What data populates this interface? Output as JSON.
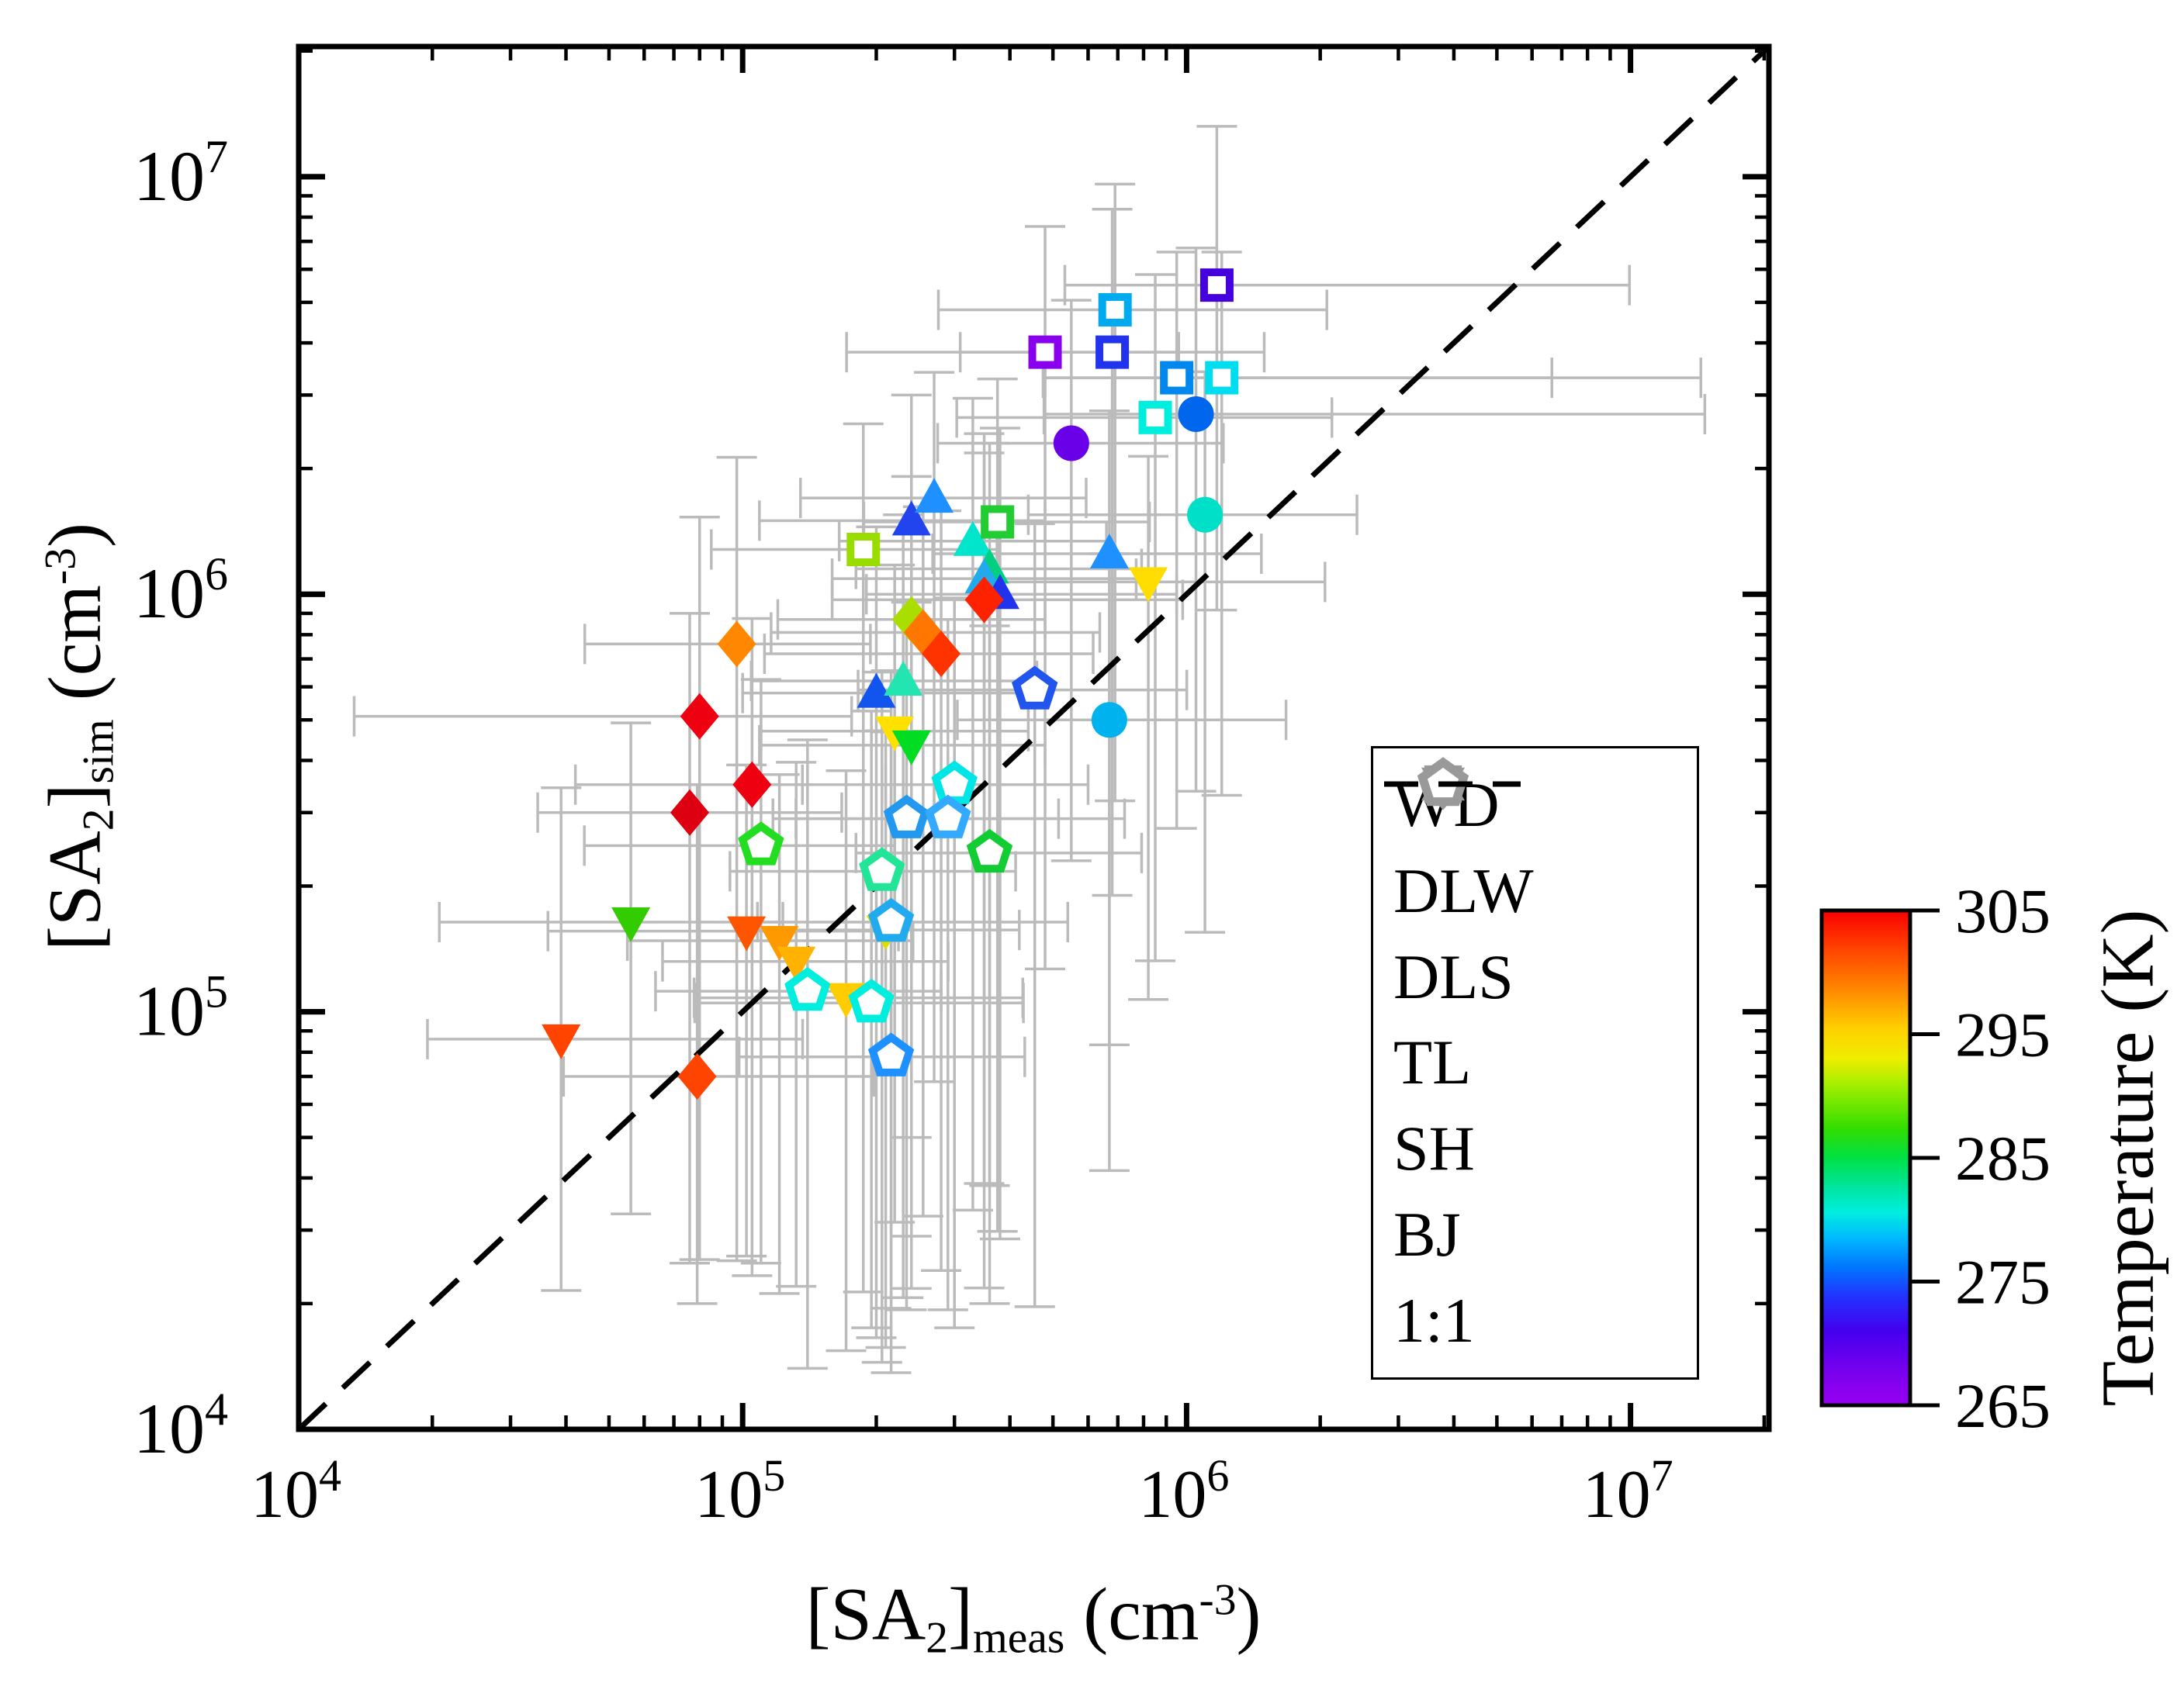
{
  "figure": {
    "background": "#FFFFFF"
  },
  "style": {
    "error_bar_color": "#BBBBBB",
    "frame_color": "#000000",
    "legend_marker_color": "#999999",
    "dash_color": "#000000"
  },
  "xlabel_parts": [
    [
      "t",
      "[SA"
    ],
    [
      "sub",
      "2"
    ],
    [
      "t",
      "]"
    ],
    [
      "sub",
      "meas"
    ],
    [
      "t",
      " (cm"
    ],
    [
      "sup",
      "-3"
    ],
    [
      "t",
      ")"
    ]
  ],
  "ylabel_parts": [
    [
      "t",
      "[SA"
    ],
    [
      "sub",
      "2"
    ],
    [
      "t",
      "]"
    ],
    [
      "sub",
      "sim"
    ],
    [
      "t",
      " (cm"
    ],
    [
      "sup",
      "-3"
    ],
    [
      "t",
      ")"
    ]
  ],
  "legend": {
    "entries": [
      {
        "label": "WD",
        "shape": "circle"
      },
      {
        "label": "DLW",
        "shape": "triangle-up"
      },
      {
        "label": "DLS",
        "shape": "triangle-down"
      },
      {
        "label": "TL",
        "shape": "diamond"
      },
      {
        "label": "SH",
        "shape": "square"
      },
      {
        "label": "BJ",
        "shape": "pentagon"
      },
      {
        "label": "1:1",
        "shape": "dash"
      }
    ]
  },
  "colorbar_stops": [
    [
      0,
      "#FA0000"
    ],
    [
      8,
      "#FF4400"
    ],
    [
      16,
      "#FF8800"
    ],
    [
      24,
      "#FFD000"
    ],
    [
      30,
      "#EEEE00"
    ],
    [
      36,
      "#99EE00"
    ],
    [
      44,
      "#33DD00"
    ],
    [
      50,
      "#00E044"
    ],
    [
      56,
      "#00E5A0"
    ],
    [
      61,
      "#00EEE0"
    ],
    [
      66,
      "#00BBFF"
    ],
    [
      72,
      "#0077FF"
    ],
    [
      78,
      "#2233FF"
    ],
    [
      85,
      "#4400EE"
    ],
    [
      93,
      "#7700EE"
    ],
    [
      100,
      "#9900F0"
    ]
  ],
  "chart_data": {
    "type": "scatter",
    "title": "",
    "xlabel": "[SA2]meas (cm-3)",
    "ylabel": "[SA2]sim (cm-3)",
    "x_scale": "log",
    "y_scale": "log",
    "xlim": [
      10000,
      20500000
    ],
    "ylim": [
      10000,
      20500000
    ],
    "tick_exponents": [
      4,
      5,
      6,
      7
    ],
    "grid": false,
    "legend_position": "inside lower right",
    "reference_line": {
      "label": "1:1",
      "style": "dashed",
      "slope": 1
    },
    "colorbar": {
      "label": "Temperature (K)",
      "min": 265,
      "max": 305,
      "ticks": [
        305,
        295,
        285,
        275,
        265
      ]
    },
    "series": [
      {
        "name": "WD",
        "marker": "circle",
        "filled": true,
        "points": [
          {
            "x": 550000,
            "y": 2300000,
            "T": 268,
            "c": "#6A00E8",
            "ex": [
              2.0,
              2.2
            ],
            "ey": [
              10,
              2.2
            ]
          },
          {
            "x": 1050000,
            "y": 2700000,
            "T": 276,
            "c": "#0066EE",
            "ex": [
              2.2,
              14
            ],
            "ey": [
              8,
              2.5
            ]
          },
          {
            "x": 1100000,
            "y": 1550000,
            "T": 282,
            "c": "#00E0C8",
            "ex": [
              2.5,
              2.2
            ],
            "ey": [
              10,
              2.2
            ]
          },
          {
            "x": 670000,
            "y": 500000,
            "T": 278,
            "c": "#00B2EE",
            "ex": [
              2.2,
              2.5
            ],
            "ey": [
              12,
              2.5
            ]
          }
        ]
      },
      {
        "name": "DLW",
        "marker": "triangle-up",
        "filled": true,
        "points": [
          {
            "x": 240000,
            "y": 1500000,
            "T": 273,
            "c": "#2244EE",
            "ex": [
              2.2,
              2.0
            ],
            "ey": [
              30,
              2.0
            ]
          },
          {
            "x": 270000,
            "y": 1700000,
            "T": 277,
            "c": "#1E90FF",
            "ex": [
              2.0,
              2.2
            ],
            "ey": [
              25,
              2.0
            ]
          },
          {
            "x": 330000,
            "y": 1340000,
            "T": 282,
            "c": "#00E5CC",
            "ex": [
              2.0,
              2.0
            ],
            "ey": [
              40,
              2.2
            ]
          },
          {
            "x": 360000,
            "y": 1150000,
            "T": 285,
            "c": "#00D080",
            "ex": [
              2.0,
              2.2
            ],
            "ey": [
              30,
              2.0
            ]
          },
          {
            "x": 350000,
            "y": 1090000,
            "T": 278,
            "c": "#22AAEE",
            "ex": [
              2.2,
              2.2
            ],
            "ey": [
              50,
              2.0
            ]
          },
          {
            "x": 380000,
            "y": 1000000,
            "T": 273,
            "c": "#2233EE",
            "ex": [
              2.0,
              2.5
            ],
            "ey": [
              35,
              2.5
            ]
          },
          {
            "x": 200000,
            "y": 580000,
            "T": 275,
            "c": "#1155EE",
            "ex": [
              2.0,
              2.2
            ],
            "ey": [
              35,
              2.5
            ]
          },
          {
            "x": 230000,
            "y": 620000,
            "T": 283,
            "c": "#22E5B2",
            "ex": [
              2.2,
              2.0
            ],
            "ey": [
              30,
              2.5
            ]
          },
          {
            "x": 670000,
            "y": 1250000,
            "T": 277,
            "c": "#1E90FF",
            "ex": [
              2.5,
              2.2
            ],
            "ey": [
              15,
              2.2
            ]
          }
        ]
      },
      {
        "name": "DLS",
        "marker": "triangle-down",
        "filled": true,
        "points": [
          {
            "x": 820000,
            "y": 1070000,
            "T": 294,
            "c": "#FFDD00",
            "ex": [
              2.2,
              2.5
            ],
            "ey": [
              10,
              2.0
            ]
          },
          {
            "x": 220000,
            "y": 470000,
            "T": 294,
            "c": "#FFE000",
            "ex": [
              2.0,
              2.0
            ],
            "ey": [
              15,
              2.5
            ]
          },
          {
            "x": 240000,
            "y": 435000,
            "T": 287,
            "c": "#00DD22",
            "ex": [
              2.2,
              2.0
            ],
            "ey": [
              20,
              2.2
            ]
          },
          {
            "x": 56000,
            "y": 164000,
            "T": 289,
            "c": "#33CC00",
            "ex": [
              2.7,
              2.2
            ],
            "ey": [
              5,
              3.0
            ]
          },
          {
            "x": 210000,
            "y": 157000,
            "T": 293,
            "c": "#DDDD00",
            "ex": [
              2.0,
              2.0
            ],
            "ey": [
              10,
              3.0
            ]
          },
          {
            "x": 102000,
            "y": 156000,
            "T": 301,
            "c": "#FF5500",
            "ex": [
              2.8,
              2.2
            ],
            "ey": [
              6,
              2.5
            ]
          },
          {
            "x": 121000,
            "y": 148000,
            "T": 298,
            "c": "#FF9900",
            "ex": [
              2.2,
              2.0
            ],
            "ey": [
              7,
              2.5
            ]
          },
          {
            "x": 132000,
            "y": 132000,
            "T": 297,
            "c": "#FFB200",
            "ex": [
              2.0,
              2.2
            ],
            "ey": [
              6,
              3.0
            ]
          },
          {
            "x": 171000,
            "y": 108000,
            "T": 295,
            "c": "#FFCC00",
            "ex": [
              2.2,
              2.5
            ],
            "ey": [
              7,
              3.5
            ]
          },
          {
            "x": 39000,
            "y": 86000,
            "T": 302,
            "c": "#FF4400",
            "ex": [
              2.0,
              3.5
            ],
            "ey": [
              4,
              4.0
            ]
          }
        ]
      },
      {
        "name": "TL",
        "marker": "diamond",
        "filled": true,
        "points": [
          {
            "x": 97000,
            "y": 760000,
            "T": 299,
            "c": "#FF8800",
            "ex": [
              2.2,
              2.0
            ],
            "ey": [
              30,
              2.8
            ]
          },
          {
            "x": 80000,
            "y": 510000,
            "T": 305,
            "c": "#EE0011",
            "ex": [
              6.0,
              2.2
            ],
            "ey": [
              20,
              3.0
            ]
          },
          {
            "x": 105000,
            "y": 350000,
            "T": 305,
            "c": "#EE0011",
            "ex": [
              2.5,
              2.0
            ],
            "ey": [
              15,
              2.5
            ]
          },
          {
            "x": 76000,
            "y": 300000,
            "T": 305,
            "c": "#DD0011",
            "ex": [
              2.2,
              2.2
            ],
            "ey": [
              12,
              3.0
            ]
          },
          {
            "x": 240000,
            "y": 870000,
            "T": 292,
            "c": "#AADD00",
            "ex": [
              2.0,
              2.0
            ],
            "ey": [
              30,
              2.2
            ]
          },
          {
            "x": 255000,
            "y": 810000,
            "T": 299,
            "c": "#FF7700",
            "ex": [
              2.2,
              2.5
            ],
            "ey": [
              25,
              2.0
            ]
          },
          {
            "x": 280000,
            "y": 720000,
            "T": 303,
            "c": "#FF3300",
            "ex": [
              2.5,
              2.2
            ],
            "ey": [
              30,
              2.2
            ]
          },
          {
            "x": 350000,
            "y": 970000,
            "T": 303,
            "c": "#FF2200",
            "ex": [
              2.2,
              2.8
            ],
            "ey": [
              25,
              2.5
            ]
          },
          {
            "x": 79000,
            "y": 70000,
            "T": 302,
            "c": "#FF4400",
            "ex": [
              2.0,
              2.5
            ],
            "ey": [
              3.5,
              5.0
            ]
          }
        ]
      },
      {
        "name": "SH",
        "marker": "square",
        "filled": false,
        "points": [
          {
            "x": 1170000,
            "y": 5500000,
            "T": 269,
            "c": "#4400DD",
            "ex": [
              2.2,
              8.5
            ],
            "ey": [
              6,
              2.4
            ]
          },
          {
            "x": 690000,
            "y": 4800000,
            "T": 278,
            "c": "#00AAEE",
            "ex": [
              2.5,
              3.0
            ],
            "ey": [
              15,
              2.0
            ]
          },
          {
            "x": 480000,
            "y": 3800000,
            "T": 267,
            "c": "#8800EE",
            "ex": [
              2.8,
              2.0
            ],
            "ey": [
              30,
              2.0
            ]
          },
          {
            "x": 680000,
            "y": 3800000,
            "T": 273,
            "c": "#2233EE",
            "ex": [
              2.2,
              2.2
            ],
            "ey": [
              20,
              2.2
            ]
          },
          {
            "x": 950000,
            "y": 3300000,
            "T": 278,
            "c": "#0088EE",
            "ex": [
              2.0,
              7.0
            ],
            "ey": [
              12,
              2.0
            ]
          },
          {
            "x": 1200000,
            "y": 3300000,
            "T": 280,
            "c": "#00DDEE",
            "ex": [
              2.5,
              12
            ],
            "ey": [
              10,
              2.0
            ]
          },
          {
            "x": 850000,
            "y": 2650000,
            "T": 281,
            "c": "#00EEDD",
            "ex": [
              2.8,
              2.5
            ],
            "ey": [
              20,
              2.2
            ]
          },
          {
            "x": 187000,
            "y": 1280000,
            "T": 292,
            "c": "#99DD00",
            "ex": [
              2.2,
              2.0
            ],
            "ey": [
              60,
              2.0
            ]
          },
          {
            "x": 375000,
            "y": 1490000,
            "T": 287,
            "c": "#22CC33",
            "ex": [
              2.0,
              2.2
            ],
            "ey": [
              50,
              2.2
            ]
          }
        ]
      },
      {
        "name": "BJ",
        "marker": "pentagon",
        "filled": false,
        "points": [
          {
            "x": 455000,
            "y": 590000,
            "T": 274,
            "c": "#2255EE",
            "ex": [
              2.5,
              2.2
            ],
            "ey": [
              30,
              2.5
            ]
          },
          {
            "x": 300000,
            "y": 350000,
            "T": 281,
            "c": "#00E5E5",
            "ex": [
              2.2,
              2.0
            ],
            "ey": [
              20,
              2.8
            ]
          },
          {
            "x": 234000,
            "y": 290000,
            "T": 277,
            "c": "#2299EE",
            "ex": [
              2.0,
              2.2
            ],
            "ey": [
              15,
              3.0
            ]
          },
          {
            "x": 290000,
            "y": 290000,
            "T": 278,
            "c": "#33AAFF",
            "ex": [
              2.2,
              2.5
            ],
            "ey": [
              15,
              3.0
            ]
          },
          {
            "x": 110000,
            "y": 250000,
            "T": 287,
            "c": "#22DD22",
            "ex": [
              2.5,
              2.0
            ],
            "ey": [
              10,
              2.5
            ]
          },
          {
            "x": 360000,
            "y": 240000,
            "T": 287,
            "c": "#11CC33",
            "ex": [
              2.0,
              2.2
            ],
            "ey": [
              12,
              3.5
            ]
          },
          {
            "x": 206000,
            "y": 217000,
            "T": 284,
            "c": "#22E598",
            "ex": [
              2.2,
              2.0
            ],
            "ey": [
              15,
              3.0
            ]
          },
          {
            "x": 216000,
            "y": 164000,
            "T": 278,
            "c": "#22AAEE",
            "ex": [
              2.0,
              2.5
            ],
            "ey": [
              12,
              4.0
            ]
          },
          {
            "x": 140000,
            "y": 112000,
            "T": 281,
            "c": "#00EEDD",
            "ex": [
              2.2,
              2.0
            ],
            "ey": [
              8,
              4.0
            ]
          },
          {
            "x": 195000,
            "y": 105000,
            "T": 281,
            "c": "#00EEDD",
            "ex": [
              2.5,
              2.2
            ],
            "ey": [
              6,
              5.0
            ]
          },
          {
            "x": 216000,
            "y": 78000,
            "T": 277,
            "c": "#1E90FF",
            "ex": [
              2.2,
              2.0
            ],
            "ey": [
              4,
              6.0
            ]
          }
        ]
      }
    ]
  }
}
